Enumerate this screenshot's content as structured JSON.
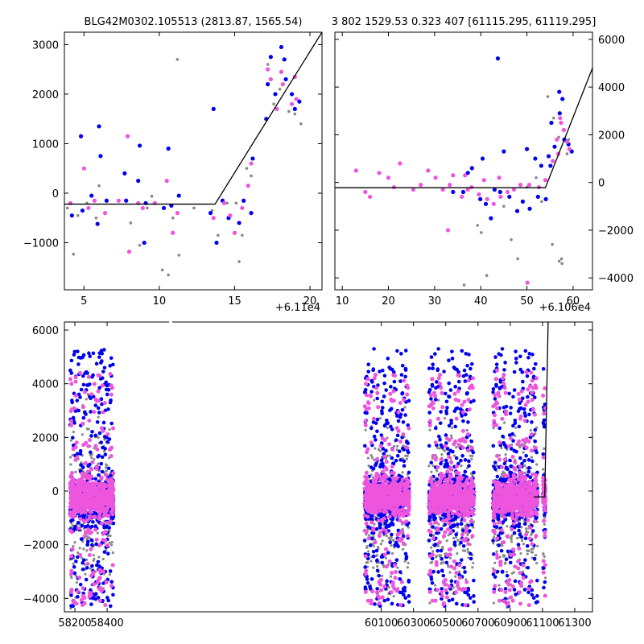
{
  "chart_data": [
    {
      "id": "top-left",
      "type": "scatter",
      "title": "BLG42M0302.105513 (2813.87, 1565.54)",
      "xlim": [
        3.7,
        20.8
      ],
      "ylim": [
        -1950,
        3250
      ],
      "x_offset_label": "+6.11e4",
      "xticks": [
        5,
        10,
        15,
        20
      ],
      "yticks": [
        -1000,
        0,
        1000,
        2000,
        3000
      ],
      "series": [
        {
          "color": "#888888",
          "points": [
            [
              3.9,
              -300
            ],
            [
              4.3,
              -1230
            ],
            [
              4.6,
              -450
            ],
            [
              5.2,
              -200
            ],
            [
              5.8,
              -500
            ],
            [
              6.0,
              150
            ],
            [
              6.5,
              -150
            ],
            [
              7.8,
              -150
            ],
            [
              8.1,
              -600
            ],
            [
              8.7,
              -1050
            ],
            [
              9.2,
              -300
            ],
            [
              9.5,
              -60
            ],
            [
              10.2,
              -1550
            ],
            [
              10.6,
              -1650
            ],
            [
              10.9,
              -500
            ],
            [
              11.2,
              2700
            ],
            [
              11.3,
              -1250
            ],
            [
              12.3,
              -300
            ],
            [
              13.5,
              -350
            ],
            [
              13.9,
              -850
            ],
            [
              14.5,
              -200
            ],
            [
              15.1,
              -200
            ],
            [
              15.3,
              -1380
            ],
            [
              15.5,
              -850
            ],
            [
              15.8,
              500
            ],
            [
              16.1,
              350
            ],
            [
              17.2,
              2600
            ],
            [
              17.6,
              1800
            ],
            [
              18.0,
              2100
            ],
            [
              18.6,
              1650
            ],
            [
              19.0,
              1600
            ],
            [
              19.4,
              1400
            ]
          ]
        },
        {
          "color": "#0000ee",
          "points": [
            [
              4.2,
              -450
            ],
            [
              4.8,
              1150
            ],
            [
              4.9,
              -350
            ],
            [
              5.5,
              -50
            ],
            [
              5.9,
              -620
            ],
            [
              6.0,
              1350
            ],
            [
              6.1,
              750
            ],
            [
              6.5,
              -150
            ],
            [
              7.7,
              400
            ],
            [
              7.8,
              -150
            ],
            [
              8.6,
              250
            ],
            [
              8.7,
              960
            ],
            [
              9.0,
              -1000
            ],
            [
              9.1,
              -200
            ],
            [
              10.3,
              -300
            ],
            [
              10.6,
              900
            ],
            [
              10.8,
              -250
            ],
            [
              11.3,
              -50
            ],
            [
              13.4,
              -400
            ],
            [
              13.6,
              1700
            ],
            [
              13.8,
              -1000
            ],
            [
              14.2,
              -150
            ],
            [
              14.6,
              -500
            ],
            [
              15.3,
              -600
            ],
            [
              15.6,
              -150
            ],
            [
              16.1,
              -400
            ],
            [
              16.2,
              700
            ],
            [
              17.1,
              1500
            ],
            [
              17.2,
              2200
            ],
            [
              17.4,
              2750
            ],
            [
              17.7,
              2000
            ],
            [
              18.1,
              2950
            ],
            [
              18.3,
              2700
            ],
            [
              18.4,
              2300
            ],
            [
              18.8,
              2000
            ],
            [
              19.0,
              1700
            ],
            [
              19.3,
              1850
            ]
          ]
        },
        {
          "color": "#ee55dd",
          "points": [
            [
              4.1,
              -200
            ],
            [
              5.0,
              500
            ],
            [
              5.3,
              -300
            ],
            [
              5.7,
              -150
            ],
            [
              6.4,
              -400
            ],
            [
              7.3,
              -150
            ],
            [
              7.9,
              1150
            ],
            [
              8.0,
              -1180
            ],
            [
              8.6,
              -200
            ],
            [
              8.9,
              -300
            ],
            [
              9.7,
              -200
            ],
            [
              10.5,
              250
            ],
            [
              10.9,
              -800
            ],
            [
              11.2,
              -400
            ],
            [
              13.6,
              -500
            ],
            [
              14.3,
              -200
            ],
            [
              14.7,
              -450
            ],
            [
              15.0,
              -800
            ],
            [
              15.5,
              -300
            ],
            [
              15.9,
              150
            ],
            [
              16.1,
              600
            ],
            [
              17.2,
              2500
            ],
            [
              17.4,
              2300
            ],
            [
              17.8,
              1700
            ],
            [
              18.1,
              2450
            ],
            [
              18.2,
              2200
            ],
            [
              18.8,
              1800
            ],
            [
              19.0,
              2350
            ],
            [
              19.1,
              1900
            ]
          ]
        }
      ],
      "fit_line": [
        [
          3.7,
          -220
        ],
        [
          13.7,
          -220
        ],
        [
          20.8,
          3250
        ]
      ]
    },
    {
      "id": "top-right",
      "type": "scatter",
      "title": "3 802 1529.53 0.323 407 [61115.295, 61119.295]",
      "xlim": [
        8.4,
        64.2
      ],
      "ylim": [
        -4500,
        6300
      ],
      "x_offset_label": "+6.106e4",
      "xticks": [
        10,
        20,
        30,
        40,
        50,
        60
      ],
      "yticks": [
        -4000,
        -2000,
        0,
        2000,
        4000,
        6000
      ],
      "series": [
        {
          "color": "#888888",
          "points": [
            [
              36.4,
              -4300
            ],
            [
              39.3,
              -1800
            ],
            [
              40.1,
              -2100
            ],
            [
              41.3,
              -3900
            ],
            [
              46.6,
              -2400
            ],
            [
              48.0,
              -3200
            ],
            [
              53.2,
              -800
            ],
            [
              55.5,
              -2600
            ],
            [
              57.0,
              -3300
            ],
            [
              57.5,
              -3200
            ],
            [
              57.6,
              -3400
            ],
            [
              54.5,
              3600
            ],
            [
              55.8,
              2700
            ],
            [
              56.9,
              1900
            ],
            [
              58.7,
              1200
            ],
            [
              59.0,
              1800
            ],
            [
              45.0,
              -1000
            ],
            [
              50.0,
              -200
            ],
            [
              52.0,
              200
            ]
          ]
        },
        {
          "color": "#0000ee",
          "points": [
            [
              34.0,
              -400
            ],
            [
              36.2,
              -400
            ],
            [
              37.2,
              400
            ],
            [
              38.1,
              600
            ],
            [
              39.9,
              -700
            ],
            [
              40.4,
              1000
            ],
            [
              41.1,
              -900
            ],
            [
              42.2,
              -1500
            ],
            [
              43.0,
              -300
            ],
            [
              43.7,
              5200
            ],
            [
              44.2,
              -400
            ],
            [
              45.0,
              1300
            ],
            [
              46.2,
              -600
            ],
            [
              47.9,
              -1200
            ],
            [
              49.1,
              -800
            ],
            [
              50.0,
              1400
            ],
            [
              50.6,
              -1100
            ],
            [
              51.8,
              1000
            ],
            [
              52.4,
              -600
            ],
            [
              53.1,
              700
            ],
            [
              54.1,
              -700
            ],
            [
              55.1,
              700
            ],
            [
              56.0,
              1500
            ],
            [
              57.0,
              3800
            ],
            [
              57.1,
              2900
            ],
            [
              57.7,
              3500
            ],
            [
              58.1,
              1800
            ],
            [
              59.0,
              1600
            ],
            [
              59.7,
              1300
            ],
            [
              55.3,
              2500
            ],
            [
              54.7,
              1100
            ]
          ]
        },
        {
          "color": "#ee55dd",
          "points": [
            [
              13.0,
              500
            ],
            [
              15.0,
              -400
            ],
            [
              16.0,
              -600
            ],
            [
              18.0,
              400
            ],
            [
              20.0,
              200
            ],
            [
              21.2,
              -200
            ],
            [
              22.5,
              800
            ],
            [
              25.4,
              -300
            ],
            [
              27.0,
              -100
            ],
            [
              28.6,
              500
            ],
            [
              30.2,
              200
            ],
            [
              31.8,
              -300
            ],
            [
              32.9,
              -2000
            ],
            [
              34.0,
              300
            ],
            [
              35.9,
              -600
            ],
            [
              37.2,
              -300
            ],
            [
              39.6,
              -500
            ],
            [
              41.4,
              -700
            ],
            [
              42.8,
              -900
            ],
            [
              44.3,
              -600
            ],
            [
              45.8,
              -400
            ],
            [
              47.2,
              -300
            ],
            [
              48.6,
              -100
            ],
            [
              50.1,
              -4200
            ],
            [
              50.5,
              -100
            ],
            [
              52.6,
              -200
            ],
            [
              54.0,
              100
            ],
            [
              55.6,
              900
            ],
            [
              56.5,
              1800
            ],
            [
              57.2,
              2700
            ],
            [
              58.0,
              2200
            ],
            [
              58.7,
              1700
            ],
            [
              59.2,
              1400
            ],
            [
              57.4,
              2500
            ],
            [
              56.8,
              1200
            ],
            [
              44.0,
              200
            ],
            [
              40.7,
              100
            ],
            [
              38.0,
              -200
            ],
            [
              36.6,
              300
            ],
            [
              33.3,
              -100
            ]
          ]
        }
      ],
      "fit_line": [
        [
          8.4,
          -220
        ],
        [
          54.0,
          -220
        ],
        [
          64.2,
          4800
        ]
      ]
    },
    {
      "id": "bottom",
      "type": "scatter",
      "xlim": [
        58135,
        61410
      ],
      "ylim": [
        -4500,
        6300
      ],
      "axis_break_at": 58475,
      "xticks": [
        58200,
        58400,
        60100,
        60300,
        60500,
        60700,
        60900,
        61100,
        61300
      ],
      "yticks": [
        -4000,
        -2000,
        0,
        2000,
        4000,
        6000
      ],
      "series_colors": [
        "#888888",
        "#0000ee",
        "#ee55dd"
      ],
      "clusters": [
        {
          "x_from": 58170,
          "x_to": 58440
        },
        {
          "x_from": 59996,
          "x_to": 60274
        },
        {
          "x_from": 60395,
          "x_to": 60676
        },
        {
          "x_from": 60792,
          "x_to": 61070
        }
      ],
      "outlier_cluster": {
        "x_from": 61103,
        "x_to": 61119
      },
      "fit_line": [
        [
          61045,
          -220
        ],
        [
          61114,
          -220
        ],
        [
          61135,
          6300
        ]
      ]
    }
  ]
}
